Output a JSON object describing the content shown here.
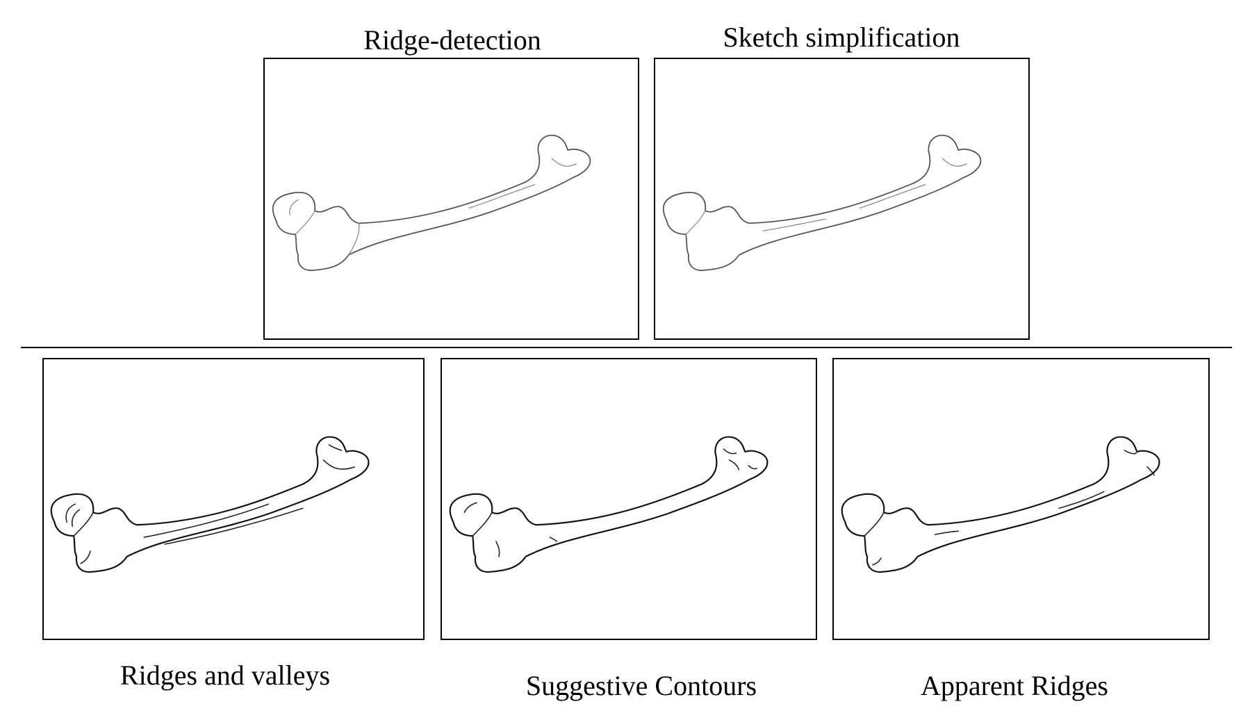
{
  "panels": {
    "ridge_detection": {
      "label": "Ridge-detection"
    },
    "sketch_simplification": {
      "label": "Sketch simplification"
    },
    "ridges_and_valleys": {
      "label": "Ridges and valleys"
    },
    "suggestive_contours": {
      "label": "Suggestive Contours"
    },
    "apparent_ridges": {
      "label": "Apparent Ridges"
    }
  }
}
